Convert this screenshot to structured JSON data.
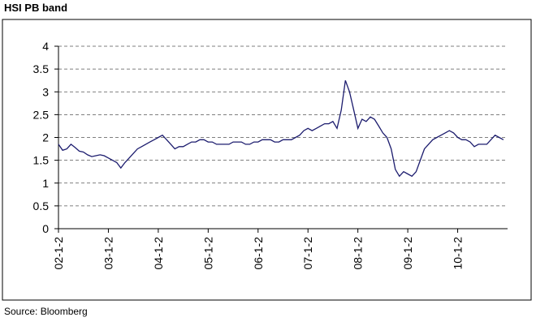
{
  "chart_data": {
    "type": "line",
    "title": "HSI PB band",
    "source": "Source: Bloomberg",
    "xlim": [
      2002,
      2011
    ],
    "xticks": [
      {
        "value": 2002,
        "label": "02-1-2"
      },
      {
        "value": 2003,
        "label": "03-1-2"
      },
      {
        "value": 2004,
        "label": "04-1-2"
      },
      {
        "value": 2005,
        "label": "05-1-2"
      },
      {
        "value": 2006,
        "label": "06-1-2"
      },
      {
        "value": 2007,
        "label": "07-1-2"
      },
      {
        "value": 2008,
        "label": "08-1-2"
      },
      {
        "value": 2009,
        "label": "09-1-2"
      },
      {
        "value": 2010,
        "label": "10-1-2"
      }
    ],
    "ylim": [
      0,
      4
    ],
    "yticks": [
      0,
      0.5,
      1,
      1.5,
      2,
      2.5,
      3,
      3.5,
      4
    ],
    "grid": true,
    "x": [
      2002,
      2002.083,
      2002.167,
      2002.25,
      2002.333,
      2002.417,
      2002.5,
      2002.583,
      2002.667,
      2002.75,
      2002.833,
      2002.917,
      2003,
      2003.083,
      2003.167,
      2003.25,
      2003.333,
      2003.417,
      2003.5,
      2003.583,
      2003.667,
      2003.75,
      2003.833,
      2003.917,
      2004,
      2004.083,
      2004.167,
      2004.25,
      2004.333,
      2004.417,
      2004.5,
      2004.583,
      2004.667,
      2004.75,
      2004.833,
      2004.917,
      2005,
      2005.083,
      2005.167,
      2005.25,
      2005.333,
      2005.417,
      2005.5,
      2005.583,
      2005.667,
      2005.75,
      2005.833,
      2005.917,
      2006,
      2006.083,
      2006.167,
      2006.25,
      2006.333,
      2006.417,
      2006.5,
      2006.583,
      2006.667,
      2006.75,
      2006.833,
      2006.917,
      2007,
      2007.083,
      2007.167,
      2007.25,
      2007.333,
      2007.417,
      2007.5,
      2007.583,
      2007.667,
      2007.75,
      2007.833,
      2007.917,
      2008,
      2008.083,
      2008.167,
      2008.25,
      2008.333,
      2008.417,
      2008.5,
      2008.583,
      2008.667,
      2008.75,
      2008.833,
      2008.917,
      2009,
      2009.083,
      2009.167,
      2009.25,
      2009.333,
      2009.417,
      2009.5,
      2009.583,
      2009.667,
      2009.75,
      2009.833,
      2009.917,
      2010,
      2010.083,
      2010.167,
      2010.25,
      2010.333,
      2010.417,
      2010.5,
      2010.583,
      2010.667,
      2010.75,
      2010.833,
      2010.917
    ],
    "series": [
      {
        "name": "HSI PB",
        "color": "#1c1c6e",
        "values": [
          1.85,
          1.72,
          1.75,
          1.85,
          1.78,
          1.7,
          1.68,
          1.62,
          1.58,
          1.6,
          1.62,
          1.6,
          1.55,
          1.5,
          1.45,
          1.33,
          1.45,
          1.55,
          1.65,
          1.75,
          1.8,
          1.85,
          1.9,
          1.95,
          2.0,
          2.05,
          1.95,
          1.85,
          1.75,
          1.8,
          1.8,
          1.85,
          1.9,
          1.9,
          1.95,
          1.95,
          1.9,
          1.9,
          1.85,
          1.85,
          1.85,
          1.85,
          1.9,
          1.9,
          1.9,
          1.85,
          1.85,
          1.9,
          1.9,
          1.95,
          1.95,
          1.95,
          1.9,
          1.9,
          1.95,
          1.95,
          1.95,
          2.0,
          2.05,
          2.15,
          2.2,
          2.15,
          2.2,
          2.25,
          2.3,
          2.3,
          2.35,
          2.2,
          2.6,
          3.25,
          3.0,
          2.6,
          2.2,
          2.4,
          2.35,
          2.45,
          2.4,
          2.25,
          2.1,
          2.0,
          1.75,
          1.3,
          1.15,
          1.25,
          1.2,
          1.15,
          1.25,
          1.5,
          1.75,
          1.85,
          1.95,
          2.0,
          2.05,
          2.1,
          2.15,
          2.1,
          2.0,
          1.95,
          1.95,
          1.9,
          1.8,
          1.85,
          1.85,
          1.85,
          1.95,
          2.05,
          2.0,
          1.95
        ]
      }
    ]
  }
}
